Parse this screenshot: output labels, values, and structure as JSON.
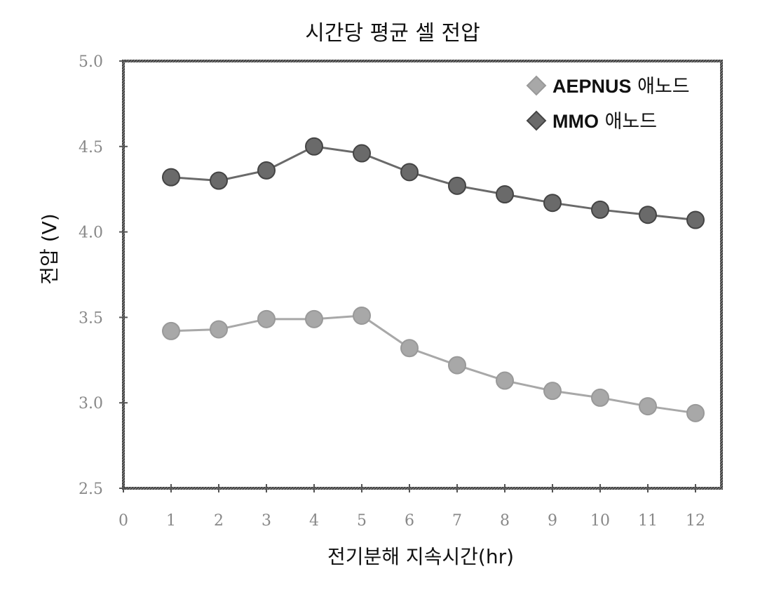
{
  "chart_data": {
    "type": "line",
    "title": "시간당 평균 셀 전압",
    "xlabel": "전기분해 지속시간(hr)",
    "ylabel": "전압 (V)",
    "xlim": [
      0,
      12
    ],
    "ylim": [
      2.5,
      5.0
    ],
    "x_ticks": [
      "0",
      "1",
      "2",
      "3",
      "4",
      "5",
      "6",
      "7",
      "8",
      "9",
      "10",
      "11",
      "12"
    ],
    "y_ticks": [
      "2.5",
      "3.0",
      "3.5",
      "4.0",
      "4.5",
      "5.0"
    ],
    "x": [
      1,
      2,
      3,
      4,
      5,
      6,
      7,
      8,
      9,
      10,
      11,
      12
    ],
    "series": [
      {
        "name": "AEPNUS",
        "name_suffix": " 애노드",
        "color": "#a8a8a8",
        "values": [
          3.42,
          3.43,
          3.49,
          3.49,
          3.51,
          3.32,
          3.22,
          3.13,
          3.07,
          3.03,
          2.98,
          2.94
        ]
      },
      {
        "name": "MMO",
        "name_suffix": " 애노드",
        "color": "#6a6a6a",
        "values": [
          4.32,
          4.3,
          4.36,
          4.5,
          4.46,
          4.35,
          4.27,
          4.22,
          4.17,
          4.13,
          4.1,
          4.07
        ]
      }
    ],
    "legend_position": "top-right",
    "grid": false
  }
}
